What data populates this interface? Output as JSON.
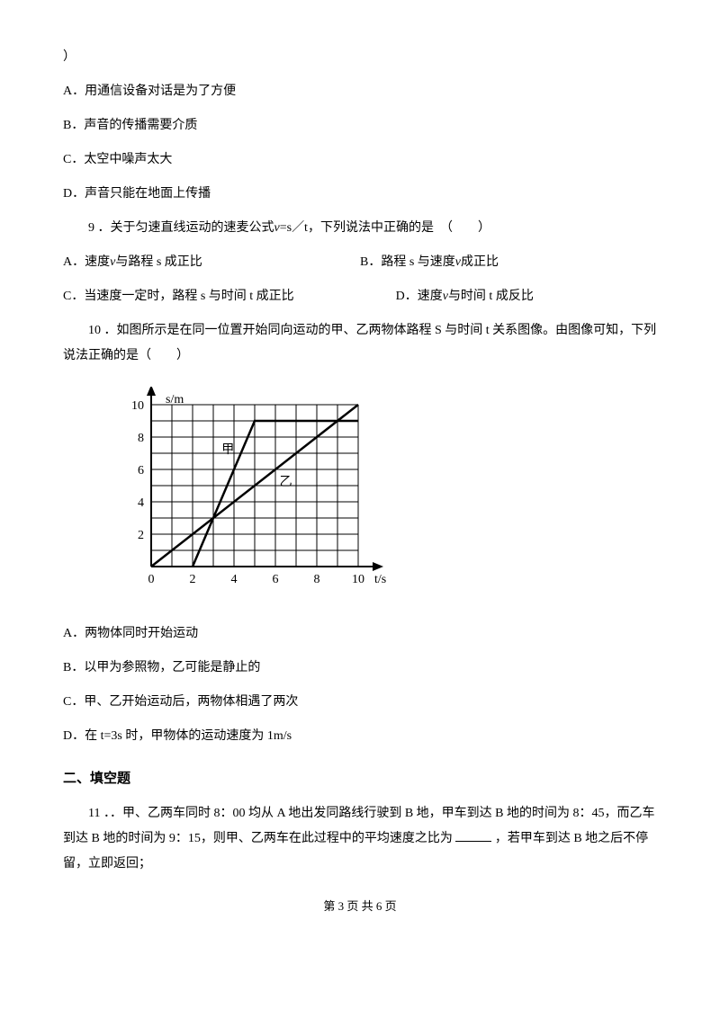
{
  "q_prev_tail": "）",
  "q_prev_options": {
    "A": "A．用通信设备对话是为了方便",
    "B": "B．声音的传播需要介质",
    "C": "C．太空中噪声太大",
    "D": "D．声音只能在地面上传播"
  },
  "q9": {
    "stem_pre": "9 ．关于匀速直线运动的速麦公式",
    "var": "v",
    "stem_post": "=s／t，下列说法中正确的是　（　　）",
    "A_pre": "A．速度",
    "A_var": "v",
    "A_post": "与路程 s 成正比",
    "B_pre": "B．路程 s 与速度",
    "B_var": "v",
    "B_post": "成正比",
    "C": "C．当速度一定时，路程 s 与时间 t 成正比",
    "D_pre": "D．速度",
    "D_var": "v",
    "D_post": "与时间 t 成反比"
  },
  "q10": {
    "stem": "10 ．如图所示是在同一位置开始同向运动的甲、乙两物体路程 S 与时间 t 关系图像。由图像可知，下列说法正确的是（　　）",
    "options": {
      "A": "A．两物体同时开始运动",
      "B": "B．以甲为参照物，乙可能是静止的",
      "C": "C．甲、乙开始运动后，两物体相遇了两次",
      "D": "D．在 t=3s 时，甲物体的运动速度为 1m/s"
    }
  },
  "chart": {
    "x_label": "t/s",
    "y_label": "s/m",
    "x_ticks": [
      0,
      2,
      4,
      6,
      8,
      10
    ],
    "y_ticks": [
      2,
      4,
      6,
      8,
      10
    ],
    "x_range": [
      0,
      10
    ],
    "y_range": [
      0,
      10
    ],
    "grid_n": 10,
    "series": {
      "jia": {
        "label": "甲",
        "points": [
          [
            2,
            0
          ],
          [
            5,
            9
          ],
          [
            10,
            9
          ]
        ],
        "label_pos": [
          3.4,
          7
        ]
      },
      "yi": {
        "label": "乙",
        "points": [
          [
            0,
            0
          ],
          [
            10,
            10
          ]
        ],
        "label_pos": [
          6.2,
          5
        ]
      }
    },
    "colors": {
      "axis": "#000000",
      "grid": "#000000",
      "line": "#000000",
      "text": "#000000",
      "bg": "#ffffff"
    },
    "line_width_grid": 1,
    "line_width_axis": 2,
    "line_width_series": 2.5,
    "axis_fontsize": 14,
    "tick_fontsize": 14
  },
  "section2_title": "二、填空题",
  "q11": {
    "stem_pre": "11 ．．甲、乙两车同时 8：00 均从 A 地出发同路线行驶到 B 地，甲车到达 B 地的时间为 8：45，而乙车到达 B 地的时间为 9：15，则甲、乙两车在此过程中的平均速度之比为",
    "stem_post": "，若甲车到达 B 地之后不停留，立即返回；"
  },
  "footer": "第 3 页 共 6 页"
}
